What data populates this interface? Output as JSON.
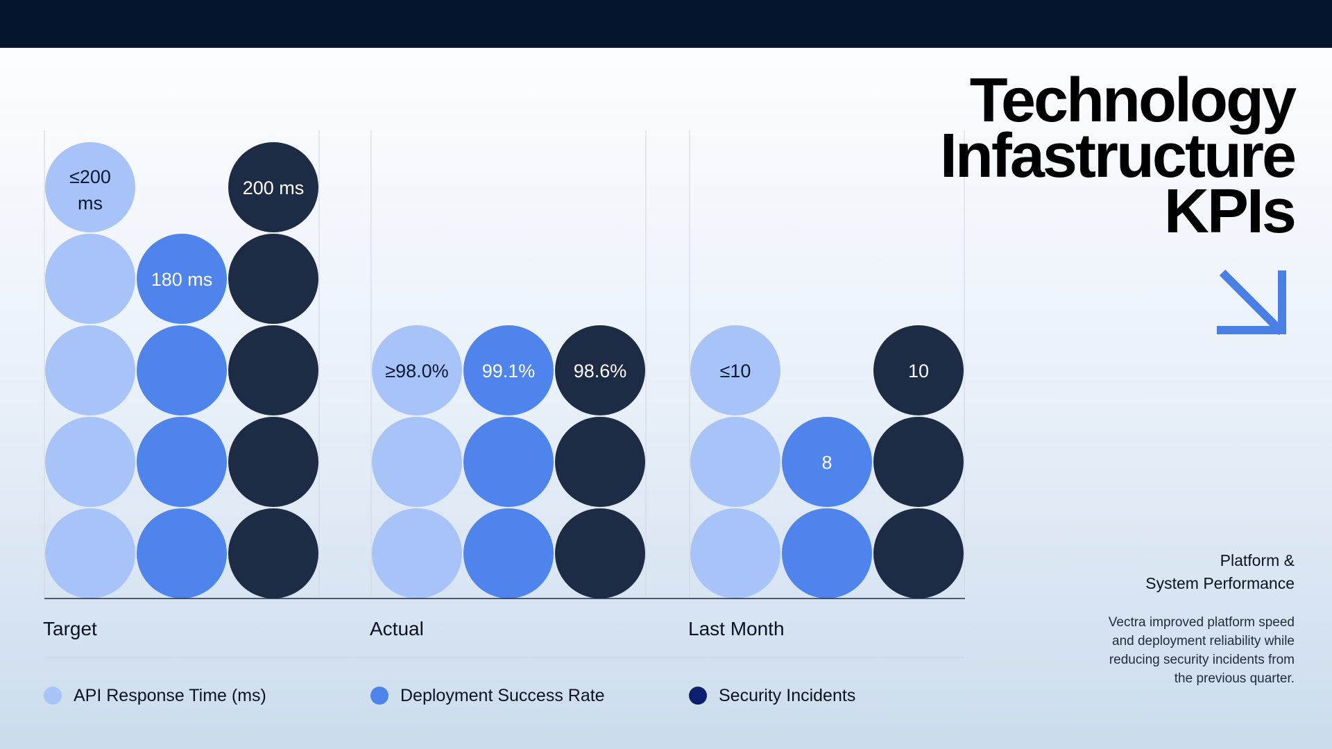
{
  "page": {
    "title_lines": [
      "Technology",
      "Infastructure",
      "KPIs"
    ],
    "subtitle_lines": [
      "Platform &",
      "System Performance"
    ],
    "description": "Vectra improved platform speed and deployment reliability while reducing security incidents from the previous quarter.",
    "arrow_icon": "arrow-down-right-icon",
    "colors": {
      "topbar": "#06142d",
      "api": "#a8c3f7",
      "deployment": "#4f84ec",
      "security": "#1e2b44",
      "security_legend": "#0c1f6e",
      "arrow": "#4a7fe6"
    }
  },
  "chart_data": {
    "type": "bar",
    "style": "stacked-circles",
    "groups": [
      {
        "name": "Target",
        "series": [
          {
            "name": "API Response Time (ms)",
            "level": 5,
            "label": "≤200 ms"
          },
          {
            "name": "Deployment Success Rate",
            "level": 4,
            "label": "180 ms"
          },
          {
            "name": "Security Incidents",
            "level": 5,
            "label": "200 ms"
          }
        ]
      },
      {
        "name": "Actual",
        "series": [
          {
            "name": "API Response Time (ms)",
            "level": 3,
            "label": "≥98.0%"
          },
          {
            "name": "Deployment Success Rate",
            "level": 3,
            "label": "99.1%"
          },
          {
            "name": "Security Incidents",
            "level": 3,
            "label": "98.6%"
          }
        ]
      },
      {
        "name": "Last Month",
        "series": [
          {
            "name": "API Response Time (ms)",
            "level": 3,
            "label": "≤10"
          },
          {
            "name": "Deployment Success Rate",
            "level": 2,
            "label": "8"
          },
          {
            "name": "Security Incidents",
            "level": 3,
            "label": "10"
          }
        ]
      }
    ],
    "legend": [
      {
        "name": "API Response Time (ms)",
        "color": "#a8c3f7"
      },
      {
        "name": "Deployment Success Rate",
        "color": "#4f84ec"
      },
      {
        "name": "Security Incidents",
        "color": "#0c1f6e"
      }
    ],
    "legend_position": "bottom"
  }
}
